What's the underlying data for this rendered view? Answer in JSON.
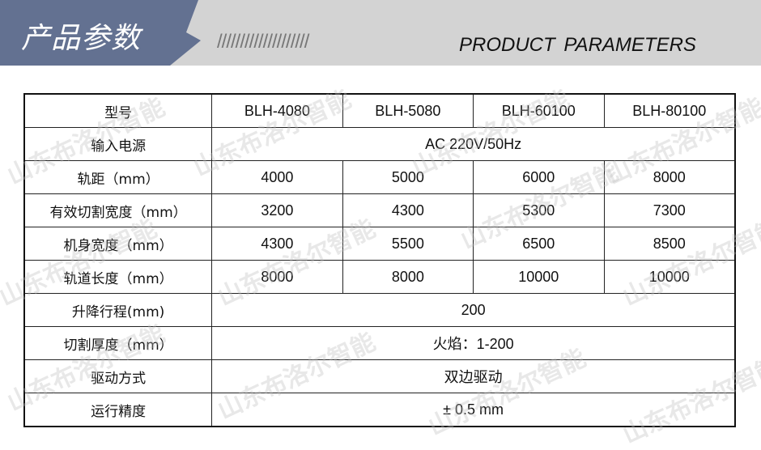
{
  "header": {
    "title": "产品参数",
    "slashes": "////////////////////",
    "subtitle": "PRODUCT  PARAMETERS"
  },
  "watermark": "山东布洛尔智能",
  "table": {
    "header": {
      "label": "型号",
      "models": [
        "BLH-4080",
        "BLH-5080",
        "BLH-60100",
        "BLH-80100"
      ]
    },
    "rows": [
      {
        "label": "输入电源",
        "span": "AC 220V/50Hz"
      },
      {
        "label": "轨距（mm）",
        "values": [
          "4000",
          "5000",
          "6000",
          "8000"
        ]
      },
      {
        "label": "有效切割宽度（mm）",
        "values": [
          "3200",
          "4300",
          "5300",
          "7300"
        ]
      },
      {
        "label": "机身宽度（mm）",
        "values": [
          "4300",
          "5500",
          "6500",
          "8500"
        ]
      },
      {
        "label": "轨道长度（mm）",
        "values": [
          "8000",
          "8000",
          "10000",
          "10000"
        ]
      },
      {
        "label": "升降行程(mm)",
        "span": "200"
      },
      {
        "label": "切割厚度（mm）",
        "span": "火焰：1-200"
      },
      {
        "label": "驱动方式",
        "span": "双边驱动"
      },
      {
        "label": "运行精度",
        "span": "± 0.5 mm"
      }
    ]
  }
}
